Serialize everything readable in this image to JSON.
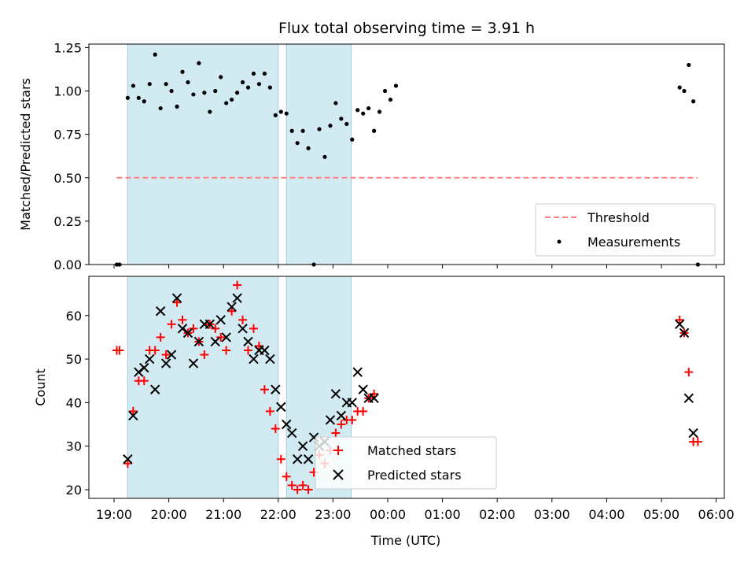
{
  "chart_data": [
    {
      "type": "scatter",
      "title": "Flux total observing time = 3.91 h",
      "xlabel": "",
      "ylabel": "Matched/Predicted stars",
      "ylim": [
        0,
        1.27
      ],
      "yticks": [
        0.0,
        0.25,
        0.5,
        0.75,
        1.0,
        1.25
      ],
      "ytick_labels": [
        "0.00",
        "0.25",
        "0.50",
        "0.75",
        "1.00",
        "1.25"
      ],
      "shaded_intervals": [
        [
          "19:15",
          "22:00"
        ],
        [
          "22:09",
          "23:20"
        ]
      ],
      "legend_position": "lower-right",
      "series": [
        {
          "name": "Threshold",
          "style": "dashed-line",
          "color": "#ff7f7f",
          "x": [
            "19:03",
            "22:00",
            "05:40"
          ],
          "y": [
            0.5,
            0.5,
            0.5
          ]
        },
        {
          "name": "Measurements",
          "style": "points",
          "color": "#000000",
          "points": [
            [
              "19:03",
              0.0
            ],
            [
              "19:06",
              0.0
            ],
            [
              "19:15",
              0.96
            ],
            [
              "19:21",
              1.03
            ],
            [
              "19:27",
              0.96
            ],
            [
              "19:33",
              0.94
            ],
            [
              "19:39",
              1.04
            ],
            [
              "19:45",
              1.21
            ],
            [
              "19:51",
              0.9
            ],
            [
              "19:57",
              1.04
            ],
            [
              "20:03",
              1.0
            ],
            [
              "20:09",
              0.91
            ],
            [
              "20:15",
              1.11
            ],
            [
              "20:21",
              1.05
            ],
            [
              "20:27",
              0.98
            ],
            [
              "20:33",
              1.16
            ],
            [
              "20:39",
              0.99
            ],
            [
              "20:45",
              0.88
            ],
            [
              "20:51",
              1.0
            ],
            [
              "20:57",
              1.08
            ],
            [
              "21:03",
              0.93
            ],
            [
              "21:09",
              0.95
            ],
            [
              "21:15",
              0.99
            ],
            [
              "21:21",
              1.05
            ],
            [
              "21:27",
              1.02
            ],
            [
              "21:33",
              1.1
            ],
            [
              "21:39",
              1.04
            ],
            [
              "21:45",
              1.1
            ],
            [
              "21:51",
              1.02
            ],
            [
              "21:57",
              0.86
            ],
            [
              "22:03",
              0.88
            ],
            [
              "22:09",
              0.87
            ],
            [
              "22:15",
              0.77
            ],
            [
              "22:21",
              0.7
            ],
            [
              "22:27",
              0.77
            ],
            [
              "22:33",
              0.67
            ],
            [
              "22:39",
              0.0
            ],
            [
              "22:45",
              0.78
            ],
            [
              "22:51",
              0.62
            ],
            [
              "22:57",
              0.8
            ],
            [
              "23:03",
              0.93
            ],
            [
              "23:09",
              0.84
            ],
            [
              "23:15",
              0.81
            ],
            [
              "23:21",
              0.72
            ],
            [
              "23:27",
              0.89
            ],
            [
              "23:33",
              0.87
            ],
            [
              "23:39",
              0.9
            ],
            [
              "23:45",
              0.77
            ],
            [
              "23:51",
              0.88
            ],
            [
              "23:57",
              1.0
            ],
            [
              "00:03",
              0.95
            ],
            [
              "00:09",
              1.03
            ],
            [
              "05:20",
              1.02
            ],
            [
              "05:25",
              1.0
            ],
            [
              "05:30",
              1.15
            ],
            [
              "05:35",
              0.94
            ],
            [
              "05:40",
              0.0
            ]
          ]
        }
      ]
    },
    {
      "type": "scatter",
      "title": "",
      "xlabel": "Time (UTC)",
      "ylabel": "Count",
      "ylim": [
        18,
        69
      ],
      "yticks": [
        20,
        30,
        40,
        50,
        60
      ],
      "ytick_labels": [
        "20",
        "30",
        "40",
        "50",
        "60"
      ],
      "xticks": [
        "19:00",
        "20:00",
        "21:00",
        "22:00",
        "23:00",
        "00:00",
        "01:00",
        "02:00",
        "03:00",
        "04:00",
        "05:00",
        "06:00"
      ],
      "shaded_intervals": [
        [
          "19:15",
          "22:00"
        ],
        [
          "22:09",
          "23:20"
        ]
      ],
      "legend_position": "lower-center",
      "series": [
        {
          "name": "Matched stars",
          "marker": "plus",
          "color": "#ff0000",
          "points": [
            [
              "19:03",
              52
            ],
            [
              "19:06",
              52
            ],
            [
              "19:15",
              26
            ],
            [
              "19:21",
              38
            ],
            [
              "19:27",
              45
            ],
            [
              "19:33",
              45
            ],
            [
              "19:39",
              52
            ],
            [
              "19:45",
              52
            ],
            [
              "19:51",
              55
            ],
            [
              "19:57",
              51
            ],
            [
              "20:03",
              58
            ],
            [
              "20:09",
              63
            ],
            [
              "20:15",
              59
            ],
            [
              "20:21",
              56
            ],
            [
              "20:27",
              57
            ],
            [
              "20:33",
              54
            ],
            [
              "20:39",
              51
            ],
            [
              "20:45",
              58
            ],
            [
              "20:51",
              57
            ],
            [
              "20:57",
              55
            ],
            [
              "21:03",
              52
            ],
            [
              "21:09",
              61
            ],
            [
              "21:15",
              67
            ],
            [
              "21:21",
              59
            ],
            [
              "21:27",
              52
            ],
            [
              "21:33",
              57
            ],
            [
              "21:39",
              53
            ],
            [
              "21:45",
              43
            ],
            [
              "21:51",
              38
            ],
            [
              "21:57",
              34
            ],
            [
              "22:03",
              27
            ],
            [
              "22:09",
              23
            ],
            [
              "22:15",
              21
            ],
            [
              "22:21",
              20
            ],
            [
              "22:27",
              21
            ],
            [
              "22:33",
              20
            ],
            [
              "22:39",
              24
            ],
            [
              "22:45",
              28
            ],
            [
              "22:51",
              26
            ],
            [
              "22:57",
              29
            ],
            [
              "23:03",
              33
            ],
            [
              "23:09",
              35
            ],
            [
              "23:15",
              36
            ],
            [
              "23:21",
              36
            ],
            [
              "23:27",
              38
            ],
            [
              "23:33",
              38
            ],
            [
              "23:39",
              41
            ],
            [
              "23:45",
              42
            ],
            [
              "05:20",
              59
            ],
            [
              "05:25",
              56
            ],
            [
              "05:30",
              47
            ],
            [
              "05:35",
              31
            ],
            [
              "05:40",
              31
            ]
          ]
        },
        {
          "name": "Predicted stars",
          "marker": "x",
          "color": "#000000",
          "points": [
            [
              "19:15",
              27
            ],
            [
              "19:21",
              37
            ],
            [
              "19:27",
              47
            ],
            [
              "19:33",
              48
            ],
            [
              "19:39",
              50
            ],
            [
              "19:45",
              43
            ],
            [
              "19:51",
              61
            ],
            [
              "19:57",
              49
            ],
            [
              "20:03",
              51
            ],
            [
              "20:09",
              64
            ],
            [
              "20:15",
              57
            ],
            [
              "20:21",
              56
            ],
            [
              "20:27",
              49
            ],
            [
              "20:33",
              54
            ],
            [
              "20:39",
              58
            ],
            [
              "20:45",
              58
            ],
            [
              "20:51",
              54
            ],
            [
              "20:57",
              59
            ],
            [
              "21:03",
              55
            ],
            [
              "21:09",
              62
            ],
            [
              "21:15",
              64
            ],
            [
              "21:21",
              57
            ],
            [
              "21:27",
              54
            ],
            [
              "21:33",
              50
            ],
            [
              "21:39",
              52
            ],
            [
              "21:45",
              52
            ],
            [
              "21:51",
              50
            ],
            [
              "21:57",
              43
            ],
            [
              "22:03",
              39
            ],
            [
              "22:09",
              35
            ],
            [
              "22:15",
              33
            ],
            [
              "22:21",
              27
            ],
            [
              "22:27",
              30
            ],
            [
              "22:33",
              27
            ],
            [
              "22:39",
              32
            ],
            [
              "22:45",
              30
            ],
            [
              "22:51",
              31
            ],
            [
              "22:57",
              36
            ],
            [
              "23:03",
              42
            ],
            [
              "23:09",
              37
            ],
            [
              "23:15",
              40
            ],
            [
              "23:21",
              40
            ],
            [
              "23:27",
              47
            ],
            [
              "23:33",
              43
            ],
            [
              "23:39",
              41
            ],
            [
              "23:45",
              41
            ],
            [
              "05:20",
              58
            ],
            [
              "05:25",
              56
            ],
            [
              "05:30",
              41
            ],
            [
              "05:35",
              33
            ]
          ]
        }
      ]
    }
  ],
  "colors": {
    "shade": "#add8e6",
    "threshold": "#ff7f7f",
    "matched": "#ff0000",
    "predicted": "#000000",
    "measurement": "#000000"
  }
}
